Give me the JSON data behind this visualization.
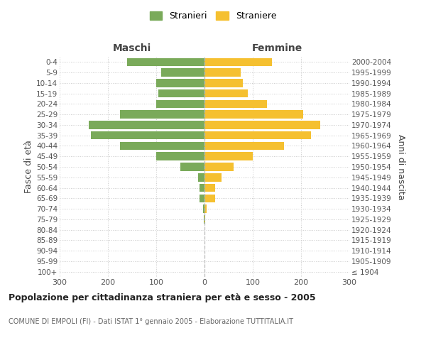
{
  "age_groups": [
    "100+",
    "95-99",
    "90-94",
    "85-89",
    "80-84",
    "75-79",
    "70-74",
    "65-69",
    "60-64",
    "55-59",
    "50-54",
    "45-49",
    "40-44",
    "35-39",
    "30-34",
    "25-29",
    "20-24",
    "15-19",
    "10-14",
    "5-9",
    "0-4"
  ],
  "birth_years": [
    "≤ 1904",
    "1905-1909",
    "1910-1914",
    "1915-1919",
    "1920-1924",
    "1925-1929",
    "1930-1934",
    "1935-1939",
    "1940-1944",
    "1945-1949",
    "1950-1954",
    "1955-1959",
    "1960-1964",
    "1965-1969",
    "1970-1974",
    "1975-1979",
    "1980-1984",
    "1985-1989",
    "1990-1994",
    "1995-1999",
    "2000-2004"
  ],
  "maschi": [
    0,
    0,
    0,
    0,
    0,
    2,
    3,
    10,
    10,
    13,
    50,
    100,
    175,
    235,
    240,
    175,
    100,
    95,
    100,
    90,
    160
  ],
  "femmine": [
    0,
    0,
    0,
    0,
    0,
    2,
    4,
    22,
    22,
    35,
    60,
    100,
    165,
    220,
    240,
    205,
    130,
    90,
    80,
    75,
    140
  ],
  "color_maschi": "#7aaa5a",
  "color_femmine": "#f5c030",
  "background_color": "#ffffff",
  "grid_color": "#cccccc",
  "title": "Popolazione per cittadinanza straniera per età e sesso - 2005",
  "subtitle": "COMUNE DI EMPOLI (FI) - Dati ISTAT 1° gennaio 2005 - Elaborazione TUTTITALIA.IT",
  "xlabel_maschi": "Maschi",
  "xlabel_femmine": "Femmine",
  "ylabel_left": "Fasce di età",
  "ylabel_right": "Anni di nascita",
  "legend_maschi": "Stranieri",
  "legend_femmine": "Straniere",
  "xlim": 300,
  "bar_height": 0.78
}
